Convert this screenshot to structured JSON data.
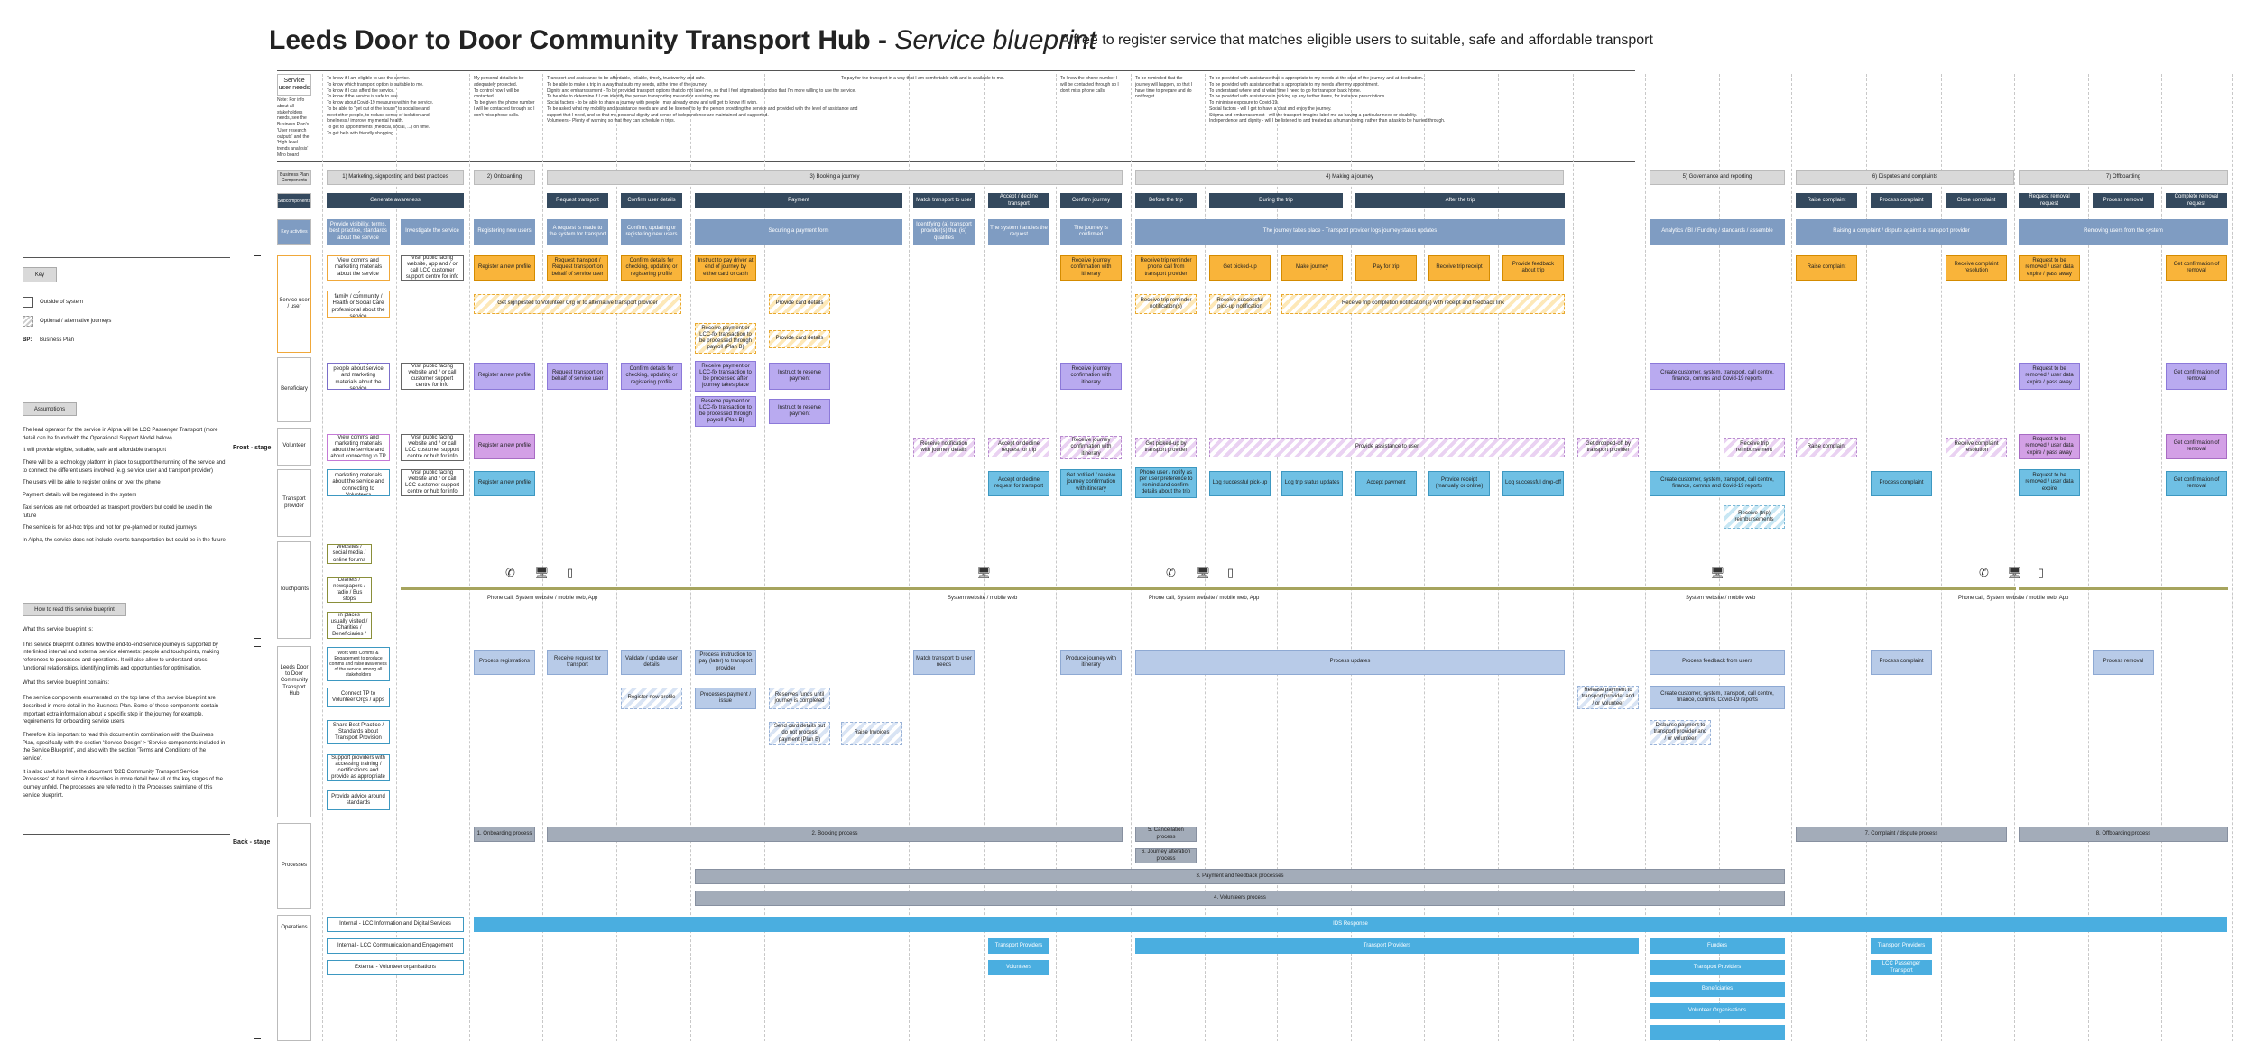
{
  "title": {
    "main": "Leeds Door to Door Community Transport Hub - ",
    "italic": "Service blueprint"
  },
  "subtitle": "A free to register service that matches eligible users to suitable, safe and affordable transport",
  "left_panel": {
    "key_label": "Key",
    "key_items": [
      "Outside of system",
      "Optional / alternative journeys"
    ],
    "bp_abbr": "BP:",
    "bp_text": "Business Plan",
    "assumptions_label": "Assumptions",
    "assumptions": [
      "The lead operator for the service in Alpha will be LCC Passenger Transport (more detail can be found with the Operational Support Model below)",
      "It will provide eligible, suitable, safe and affordable transport",
      "There will be a technology platform in place to support the running of the service and to connect the different users involved (e.g. service user and transport provider)",
      "The users will be able to register online or over the phone",
      "Payment details will be registered in the system",
      "Taxi services are not onboarded as transport providers but could be used in the future",
      "The service is for ad-hoc trips and not for pre-planned or routed journeys",
      "In Alpha, the service does not include events transportation but could be in the future"
    ],
    "howto_label": "How to read this service blueprint",
    "howto": [
      "What this service blueprint is:",
      "This service blueprint outlines how the end-to-end service journey is supported by interlinked internal and external service elements: people and touchpoints, making references to processes and operations. It will also allow to understand cross-functional relationships, identifying limits and opportunities for optimisation.",
      "What this service blueprint contains:",
      "The service components enumerated on the top lane of this service blueprint are described in more detail in the Business Plan. Some of these components contain important extra information about a specific step in the journey for example, requirements for onboarding service users.",
      "Therefore it is important to read this document in combination with the Business Plan, specifically with the section 'Service Design' > 'Service components included in the Service Blueprint', and also with the section 'Terms and Conditions of the service'.",
      "It is also useful to have the document 'D2D Community Transport Service Processes' at hand, since it describes in more detail how all of the key stages of the journey unfold. The processes are referred to in the Processes swimlane of this service blueprint."
    ]
  },
  "stages": {
    "front": "Front - stage",
    "back": "Back - stage"
  },
  "row_labels": {
    "needs": "Service user needs",
    "needs_note": "Note: For info about all stakeholders needs, see the Business Plan's 'User research outputs' and the 'High level trends analysis' Miro board",
    "bp": "Business Plan Components",
    "sub": "Subcomponents",
    "key": "Key activities",
    "service_user": "Service user / user",
    "beneficiary": "Beneficiary",
    "volunteer": "Volunteer",
    "transport": "Transport provider",
    "touchpoints": "Touchpoints",
    "hub": "Leeds Door to Door Community Transport Hub",
    "processes": "Processes",
    "operations": "Operations"
  },
  "needs": [
    [
      "To know if I am eligible to use the service.",
      "To know which transport option is suitable to me.",
      "To know if I can afford the service.",
      "To know if the service is safe to use.",
      "To know about Covid-19 measures within the service.",
      "To be able to \"get out of the house\" to socialise and meet other people, to reduce sense of isolation and loneliness / improve my mental health.",
      "To get to appointments (medical, social, ...) on time.",
      "To get help with friendly shopping."
    ],
    [
      "My personal details to be adequately protected.",
      "To control how I will be contacted.",
      "To be given the phone number I will be contacted through so I don't miss phone calls."
    ],
    [
      "Transport and assistance to be affordable, reliable, timely, trustworthy and safe.",
      "To be able to make a trip in a way that suits my needs, at the time of the journey.",
      "Dignity and embarrassment - To be provided transport options that do not label me, so that I feel stigmatised and so that I'm more willing to use the service.",
      "To be able to determine if I can identify the person transporting me and/or assisting me.",
      "Social factors - to be able to share a journey with people I may already know and will get to know if I wish.",
      "To be asked what my mobility and assistance needs are and be listened to by the person providing the service and provided with the level of assistance and support that I need, and so that my personal dignity and sense of independence are maintained and supported.",
      "Volunteers - Plenty of warning so that they can schedule in trips."
    ],
    [
      "To pay for the transport in a way that I am comfortable with and is available to me."
    ],
    [
      "To know the phone number I will be contacted through so I don't miss phone calls."
    ],
    [
      "To be reminded that the journey will happen, so that I have time to prepare and do not forget."
    ],
    [
      "To be provided with assistance that is appropriate to my needs at the start of the journey and at destination.",
      "To be provided with assistance that is appropriate to my needs after my appointment.",
      "To understand where and at what time I need to go for transport back home.",
      "To be provided with assistance in picking up any further items, for instance prescriptions.",
      "To minimise exposure to Covid-19.",
      "Social factors - will I get to have a chat and enjoy the journey.",
      "Stigma and embarrassment - will the transport imagine label me as having a particular need or disability.",
      "Independence and dignity - will I be listened to and treated as a human being, rather than a task to be hurried through."
    ]
  ],
  "phases": [
    "1) Marketing, signposting and best practices",
    "2) Onboarding",
    "3) Booking a journey",
    "4) Making a journey",
    "5) Governance and reporting",
    "6) Disputes and complaints",
    "7) Offboarding"
  ],
  "subcomponents": [
    "Generate awareness",
    "Request transport",
    "Confirm user details",
    "Payment",
    "Match transport to user",
    "Accept / decline transport",
    "Confirm journey",
    "Before the trip",
    "During the trip",
    "After the trip",
    "Raise complaint",
    "Process complaint",
    "Close complaint",
    "Request removal request",
    "Process removal",
    "Complete removal request"
  ],
  "key_activities": [
    "Provide visibility, terms, best practice, standards about the service",
    "Investigate the service",
    "Registering new users",
    "A request is made to the system for transport",
    "Confirm, updating or registering new users",
    "Securing a payment form",
    "Identifying (a) transport provider(s) that (is) qualifies",
    "The system handles the request",
    "The journey is confirmed",
    "The journey takes place - Transport provider logs journey status updates",
    "Analytics / BI / Funding / standards / assemble",
    "Raising a complaint / dispute against a transport provider",
    "Removing users from the system"
  ],
  "service_user": [
    "View comms and marketing materials about the service",
    "Visit public facing website, app and / or call LCC customer support centre for info",
    "Register a new profile",
    "Request transport / Request transport on behalf of service user",
    "Confirm details for checking, updating or registering profile",
    "Instruct to pay driver at end of journey by either card or cash",
    "Receive journey confirmation with itinerary",
    "Receive trip reminder phone call from transport provider",
    "Get picked-up",
    "Make journey",
    "Pay for trip",
    "Receive trip receipt",
    "Provide feedback about trip",
    "Raise complaint",
    "Receive complaint resolution",
    "Request to be removed / user data expire / pass away",
    "Get confirmation of removal"
  ],
  "service_user_opt": [
    "Get told by friends / family / community / Health or Social Care professional about the service",
    "Get signposted to Volunteer Org or to alternative transport provider",
    "Provide card details",
    "Receive payment or LCC-fix transaction to be processed through payroll (Plan B)",
    "Provide card details",
    "Receive trip reminder notification(s)",
    "Receive successful pick-up notification",
    "Receive trip completion notification(s) with receipt and feedback link"
  ],
  "beneficiary": [
    "View / display / tell people about service and marketing materials about the service",
    "Visit public facing website and / or call customer support centre for info",
    "Register a new profile",
    "Request transport on behalf of service user",
    "Confirm details for checking, updating or registering profile",
    "Receive payment or LCC-fix transaction to be processed after journey takes place",
    "Instruct to reserve payment",
    "Reserve payment or LCC-fix transaction to be processed through payroll (Plan B)",
    "Instruct to reserve payment",
    "Receive journey confirmation with itinerary",
    "Create customer, system, transport, call centre, finance, comms and Covid-19 reports",
    "Request to be removed / user data expire / pass away",
    "Get confirmation of removal"
  ],
  "volunteer": [
    "View comms and marketing materials about the service and about connecting to TP",
    "Visit public facing website and / or call LCC customer support centre or hub for info",
    "Register a new profile",
    "Receive notification with journey details",
    "Accept or decline request for trip",
    "Receive journey confirmation with itinerary",
    "Get picked-up by transport provider",
    "Provide assistance to user",
    "Get dropped-off by transport provider",
    "Receive trip reimbursement",
    "Raise complaint",
    "Receive complaint resolution",
    "Request to be removed / user data expire / pass away",
    "Get confirmation of removal"
  ],
  "transport": [
    "View comms and marketing materials about the service and connecting to Volunteers",
    "Visit public facing website and / or call LCC customer support centre or hub for info",
    "Register a new profile",
    "Accept or decline request for transport",
    "Get notified / receive journey confirmation with itinerary",
    "Phone user / notify as per user preference to remind and confirm details about the trip",
    "Log successful pick-up",
    "Log trip status updates",
    "Accept payment",
    "Provide receipt (manually or online)",
    "Log successful drop-off",
    "Create customer, system, transport, call centre, finance, comms and Covid-19 reports",
    "Receive (trip) reimbursements",
    "Process complaint",
    "Request to be removed / user data expire",
    "Get confirmation of removal"
  ],
  "touchpoints": [
    "Websites / social media / online forums",
    "Leaflets / newspapers / radio / Bus stops",
    "Word of mouth in places usually visited / Charities / Beneficiaries / etc."
  ],
  "channels": [
    "Phone call, System website / mobile web, App",
    "System website / mobile web",
    "Phone call, System website / mobile web, App",
    "System website / mobile web",
    "Phone call, System website / mobile web, App"
  ],
  "hub": [
    "Work with Comms & Engagement to produce comms and raise awareness of the service among all stakeholders",
    "Connect TP to Volunteer Orgs / apps",
    "Share Best Practice / Standards about Transport Provision",
    "Support providers with accessing training / certifications and provide as appropriate",
    "Provide advice around standards",
    "Process registrations",
    "Receive request for transport",
    "Validate / update user details",
    "Process instruction to pay (later) to transport provider",
    "Register new profile",
    "Processes payment / issue",
    "Reserves funds until journey is completed",
    "Send card details but do not process payment (Plan B)",
    "Raise Invoices",
    "Match transport to user needs",
    "Produce journey with itinerary",
    "Process updates",
    "Release payment to transport provider and / or volunteer",
    "Process feedback from users",
    "Create customer, system, transport, call centre, finance, comms, Covid-19 reports",
    "Disburse payment to transport provider and / or volunteer",
    "Process complaint",
    "Process removal"
  ],
  "processes": [
    "1. Onboarding process",
    "2. Booking process",
    "5. Cancellation process",
    "6. Journey alteration process",
    "3. Payment and feedback processes",
    "4. Volunteers process",
    "7. Complaint / dispute process",
    "8. Offboarding process"
  ],
  "operations_labels": [
    "Internal - LCC Information and Digital Services",
    "Internal - LCC Communication and Engagement",
    "External - Volunteer organisations"
  ],
  "operations": [
    "IDS Response",
    "Transport Providers",
    "Volunteers",
    "Transport Providers",
    "Funders",
    "Transport Providers",
    "Beneficiaries",
    "Volunteer Organisations",
    "Transport Providers",
    "LCC Passenger Transport"
  ]
}
